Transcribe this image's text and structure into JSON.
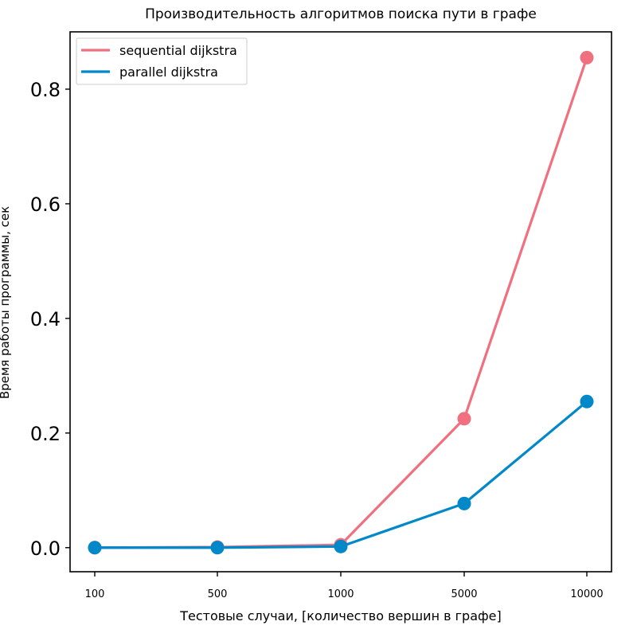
{
  "chart_data": {
    "type": "line",
    "title": "Производительность алгоритмов поиска пути в графе",
    "xlabel": "Тестовые случаи, [количество вершин в графе]",
    "ylabel": "Время работы программы, сек",
    "categories": [
      "100",
      "500",
      "1000",
      "5000",
      "10000"
    ],
    "series": [
      {
        "name": "sequential dijkstra",
        "color": "#f07080",
        "values": [
          0.0,
          0.001,
          0.005,
          0.225,
          0.855
        ]
      },
      {
        "name": "parallel dijkstra",
        "color": "#0088c8",
        "values": [
          0.0,
          0.0,
          0.002,
          0.077,
          0.255
        ]
      }
    ],
    "yticks": [
      "0.0",
      "0.2",
      "0.4",
      "0.6",
      "0.8"
    ],
    "ylim": [
      -0.042,
      0.9
    ],
    "grid": false,
    "legend_position": "top-left"
  }
}
